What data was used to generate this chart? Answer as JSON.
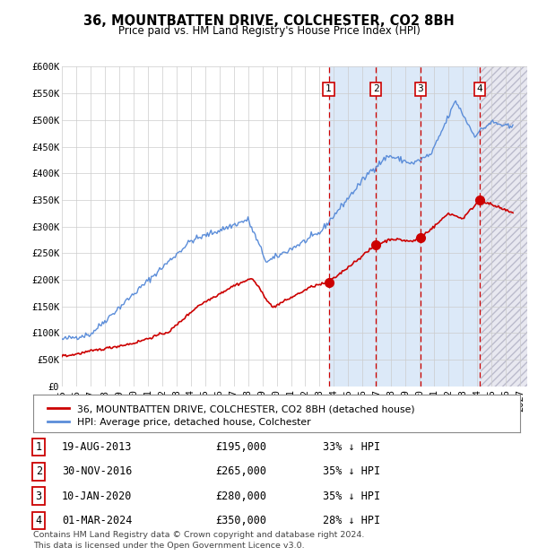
{
  "title": "36, MOUNTBATTEN DRIVE, COLCHESTER, CO2 8BH",
  "subtitle": "Price paid vs. HM Land Registry's House Price Index (HPI)",
  "xlim_start": 1995.0,
  "xlim_end": 2027.5,
  "ylim": [
    0,
    600000
  ],
  "yticks": [
    0,
    50000,
    100000,
    150000,
    200000,
    250000,
    300000,
    350000,
    400000,
    450000,
    500000,
    550000,
    600000
  ],
  "ytick_labels": [
    "£0",
    "£50K",
    "£100K",
    "£150K",
    "£200K",
    "£250K",
    "£300K",
    "£350K",
    "£400K",
    "£450K",
    "£500K",
    "£550K",
    "£600K"
  ],
  "xticks": [
    1995,
    1996,
    1997,
    1998,
    1999,
    2000,
    2001,
    2002,
    2003,
    2004,
    2005,
    2006,
    2007,
    2008,
    2009,
    2010,
    2011,
    2012,
    2013,
    2014,
    2015,
    2016,
    2017,
    2018,
    2019,
    2020,
    2021,
    2022,
    2023,
    2024,
    2025,
    2026,
    2027
  ],
  "sale_dates": [
    2013.63,
    2016.92,
    2020.03,
    2024.17
  ],
  "sale_prices": [
    195000,
    265000,
    280000,
    350000
  ],
  "sale_labels": [
    "1",
    "2",
    "3",
    "4"
  ],
  "hpi_color": "#5B8DD9",
  "sale_color": "#CC0000",
  "shade_fill_color": "#DCE9F8",
  "hatch_bg_color": "#EBEBEB",
  "shade_start": 2013.63,
  "shade_end": 2024.17,
  "legend_line1": "36, MOUNTBATTEN DRIVE, COLCHESTER, CO2 8BH (detached house)",
  "legend_line2": "HPI: Average price, detached house, Colchester",
  "table_rows": [
    [
      "1",
      "19-AUG-2013",
      "£195,000",
      "33% ↓ HPI"
    ],
    [
      "2",
      "30-NOV-2016",
      "£265,000",
      "35% ↓ HPI"
    ],
    [
      "3",
      "10-JAN-2020",
      "£280,000",
      "35% ↓ HPI"
    ],
    [
      "4",
      "01-MAR-2024",
      "£350,000",
      "28% ↓ HPI"
    ]
  ],
  "footnote1": "Contains HM Land Registry data © Crown copyright and database right 2024.",
  "footnote2": "This data is licensed under the Open Government Licence v3.0.",
  "grid_color": "#CCCCCC",
  "bg_color": "#FFFFFF"
}
